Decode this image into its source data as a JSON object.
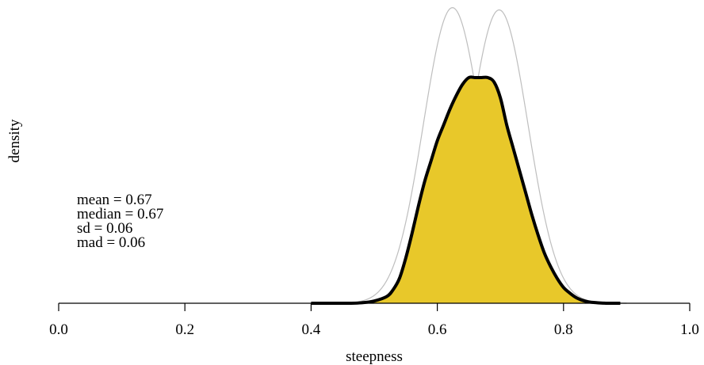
{
  "chart_data": {
    "type": "area",
    "title": "",
    "xlabel": "steepness",
    "ylabel": "density",
    "xlim": [
      0.0,
      1.0
    ],
    "x_ticks": [
      "0.0",
      "0.2",
      "0.4",
      "0.6",
      "0.8",
      "1.0"
    ],
    "y_axis_ticks_shown": false,
    "grid": false,
    "series": [
      {
        "role": "posterior",
        "fill": "#E8C82A",
        "stroke": "#000000",
        "x": [
          0.4,
          0.42,
          0.44,
          0.46,
          0.48,
          0.5,
          0.52,
          0.53,
          0.54,
          0.55,
          0.56,
          0.57,
          0.58,
          0.59,
          0.6,
          0.61,
          0.62,
          0.63,
          0.64,
          0.65,
          0.66,
          0.67,
          0.68,
          0.69,
          0.7,
          0.71,
          0.72,
          0.73,
          0.74,
          0.75,
          0.76,
          0.77,
          0.78,
          0.79,
          0.8,
          0.81,
          0.82,
          0.83,
          0.84,
          0.85,
          0.86,
          0.87,
          0.88,
          0.89
        ],
        "y": [
          0.0,
          0.0,
          0.0,
          0.0,
          0.002,
          0.01,
          0.03,
          0.06,
          0.11,
          0.2,
          0.31,
          0.43,
          0.54,
          0.63,
          0.72,
          0.79,
          0.86,
          0.92,
          0.97,
          1.0,
          1.0,
          1.0,
          1.0,
          0.98,
          0.91,
          0.79,
          0.69,
          0.59,
          0.49,
          0.39,
          0.3,
          0.22,
          0.16,
          0.11,
          0.07,
          0.045,
          0.025,
          0.013,
          0.006,
          0.003,
          0.001,
          0.0,
          0.0,
          0.0
        ]
      },
      {
        "role": "component-1",
        "stroke": "#BEBEBE",
        "mean": 0.624,
        "sd": 0.046,
        "peak": 1.31
      },
      {
        "role": "component-2",
        "stroke": "#BEBEBE",
        "mean": 0.698,
        "sd": 0.046,
        "peak": 1.3
      }
    ],
    "annotations": [
      "mean =  0.67",
      "median =  0.67",
      "sd =  0.06",
      "mad =  0.06"
    ]
  }
}
